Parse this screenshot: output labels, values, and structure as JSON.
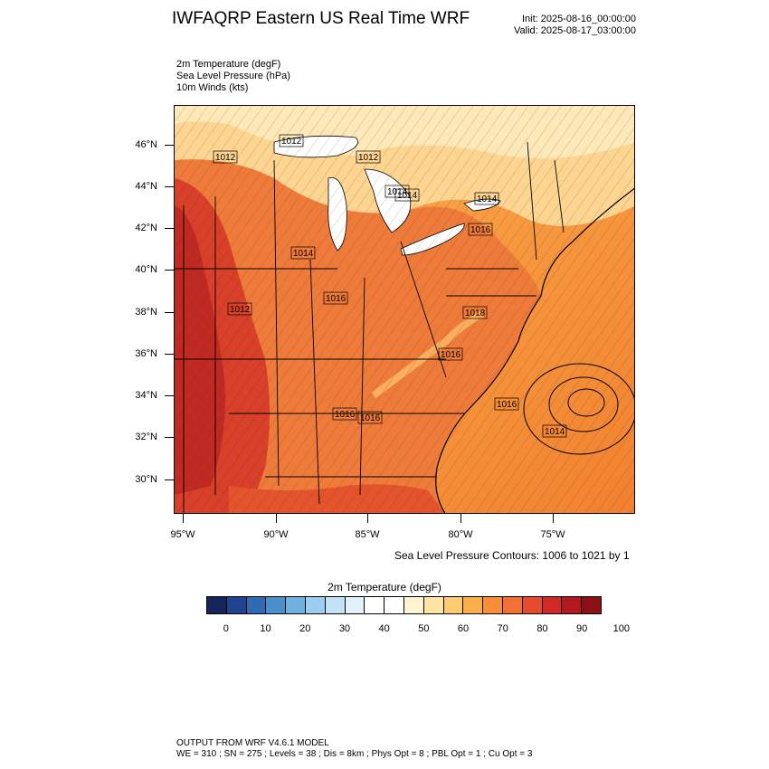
{
  "header": {
    "title": "IWFAQRP Eastern US Real Time WRF",
    "init": "Init: 2025-08-16_00:00:00",
    "valid": "Valid: 2025-08-17_03:00:00"
  },
  "fields": [
    "2m Temperature   (degF)",
    "Sea Level Pressure   (hPa)",
    "10m Winds   (kts)"
  ],
  "map": {
    "lat_labels": [
      "46°N",
      "44°N",
      "42°N",
      "40°N",
      "38°N",
      "36°N",
      "34°N",
      "32°N",
      "30°N"
    ],
    "lon_labels": [
      "95°W",
      "90°W",
      "85°W",
      "80°W",
      "75°W"
    ],
    "pressure_labels": [
      "1012",
      "1012",
      "1014",
      "1012",
      "1014",
      "1016",
      "1014",
      "1012",
      "1016",
      "1014",
      "1016",
      "1016",
      "1018",
      "1016",
      "1016",
      "1014"
    ],
    "land_color": "#ef7b3a",
    "lake_color": "#ffffff"
  },
  "contour_note": "Sea Level Pressure Contours: 1006 to 1021 by 1",
  "colorbar": {
    "title": "2m Temperature  (degF)",
    "labels": [
      "0",
      "10",
      "20",
      "30",
      "40",
      "50",
      "60",
      "70",
      "80",
      "90",
      "100"
    ],
    "colors": [
      "#15245a",
      "#1f4590",
      "#2f6bb4",
      "#4a91cc",
      "#6fb2e0",
      "#9ccfee",
      "#c2e3f5",
      "#e3f1fa",
      "#ffffff",
      "#ffffff",
      "#fff4d2",
      "#fee5a4",
      "#fdcb72",
      "#fcae4a",
      "#f88f37",
      "#f17032",
      "#e44c2d",
      "#cf2a26",
      "#b3181f",
      "#8c1116"
    ]
  },
  "footer": {
    "line1": "OUTPUT FROM WRF V4.6.1 MODEL",
    "line2": "WE = 310 ; SN = 275 ; Levels = 38 ; Dis = 8km ; Phys Opt = 8 ; PBL Opt = 1 ; Cu Opt = 3"
  }
}
